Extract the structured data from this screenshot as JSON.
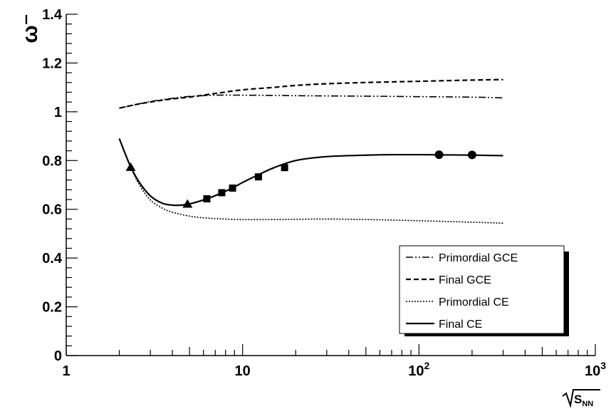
{
  "chart_data": {
    "type": "line",
    "title": "",
    "xlabel": "S_NN",
    "ylabel": "ω⁻",
    "xscale": "log",
    "xlim": [
      1,
      1000
    ],
    "ylim": [
      0,
      1.4
    ],
    "grid": false,
    "legend_position": "bottom-right",
    "x_tick_labels": [
      {
        "value": 1,
        "base": "1",
        "sup": ""
      },
      {
        "value": 10,
        "base": "10",
        "sup": ""
      },
      {
        "value": 100,
        "base": "10",
        "sup": "2"
      },
      {
        "value": 1000,
        "base": "10",
        "sup": "3"
      }
    ],
    "y_tick_labels": [
      "0",
      "0.2",
      "0.4",
      "0.6",
      "0.8",
      "1",
      "1.2",
      "1.4"
    ],
    "y_tick_values": [
      0,
      0.2,
      0.4,
      0.6,
      0.8,
      1.0,
      1.2,
      1.4
    ],
    "series": [
      {
        "name": "Primordial GCE",
        "style": "dash-dot-dot",
        "x": [
          2.0,
          2.5,
          3,
          4,
          5,
          7,
          10,
          15,
          20,
          30,
          50,
          100,
          200,
          300
        ],
        "y": [
          1.015,
          1.03,
          1.042,
          1.055,
          1.063,
          1.068,
          1.068,
          1.067,
          1.066,
          1.065,
          1.064,
          1.062,
          1.06,
          1.057
        ]
      },
      {
        "name": "Final GCE",
        "style": "dashed",
        "x": [
          2.0,
          2.5,
          3,
          4,
          5,
          7,
          10,
          15,
          20,
          30,
          50,
          100,
          200,
          300
        ],
        "y": [
          1.015,
          1.03,
          1.04,
          1.053,
          1.06,
          1.075,
          1.09,
          1.1,
          1.108,
          1.115,
          1.12,
          1.125,
          1.13,
          1.132
        ]
      },
      {
        "name": "Primordial CE",
        "style": "dotted",
        "x": [
          2.0,
          2.3,
          2.6,
          3,
          3.5,
          4,
          5,
          6,
          7,
          8,
          10,
          15,
          20,
          30,
          50,
          100,
          200,
          300
        ],
        "y": [
          0.89,
          0.78,
          0.7,
          0.638,
          0.605,
          0.588,
          0.572,
          0.565,
          0.562,
          0.56,
          0.558,
          0.558,
          0.559,
          0.56,
          0.558,
          0.553,
          0.547,
          0.543
        ]
      },
      {
        "name": "Final CE",
        "style": "solid",
        "x": [
          2.0,
          2.3,
          2.6,
          3,
          3.5,
          4,
          4.5,
          5,
          6,
          7,
          8,
          9,
          10,
          12,
          15,
          20,
          30,
          50,
          70,
          100,
          150,
          200,
          300
        ],
        "y": [
          0.89,
          0.78,
          0.71,
          0.655,
          0.625,
          0.617,
          0.617,
          0.622,
          0.638,
          0.656,
          0.674,
          0.692,
          0.71,
          0.738,
          0.77,
          0.8,
          0.816,
          0.822,
          0.824,
          0.824,
          0.823,
          0.822,
          0.82
        ]
      }
    ],
    "markers": [
      {
        "shape": "triangle",
        "points": [
          {
            "x": 2.32,
            "y": 0.772
          },
          {
            "x": 4.87,
            "y": 0.621
          }
        ]
      },
      {
        "shape": "square",
        "points": [
          {
            "x": 6.27,
            "y": 0.643
          },
          {
            "x": 7.62,
            "y": 0.668
          },
          {
            "x": 8.77,
            "y": 0.687
          },
          {
            "x": 12.3,
            "y": 0.733
          },
          {
            "x": 17.3,
            "y": 0.771
          }
        ]
      },
      {
        "shape": "circle",
        "points": [
          {
            "x": 130,
            "y": 0.824
          },
          {
            "x": 200,
            "y": 0.823
          }
        ]
      }
    ]
  }
}
